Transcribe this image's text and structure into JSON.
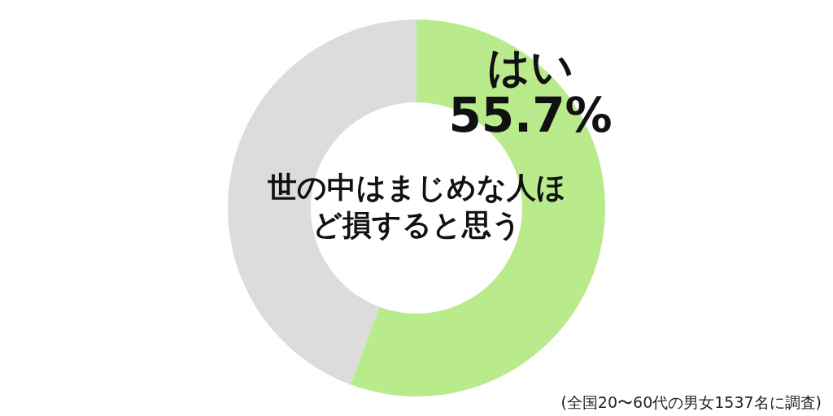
{
  "chart_data": {
    "type": "donut",
    "title": "世の中はまじめな人ほど損すると思う",
    "categories": [
      "はい",
      null
    ],
    "values": [
      55.7,
      44.3
    ],
    "colors": [
      "#b9eb8c",
      "#dcdcdc"
    ],
    "value_labels": [
      "55.7%",
      null
    ],
    "annotations": [
      "(全国20〜60代の男女1537名に調査)"
    ]
  }
}
